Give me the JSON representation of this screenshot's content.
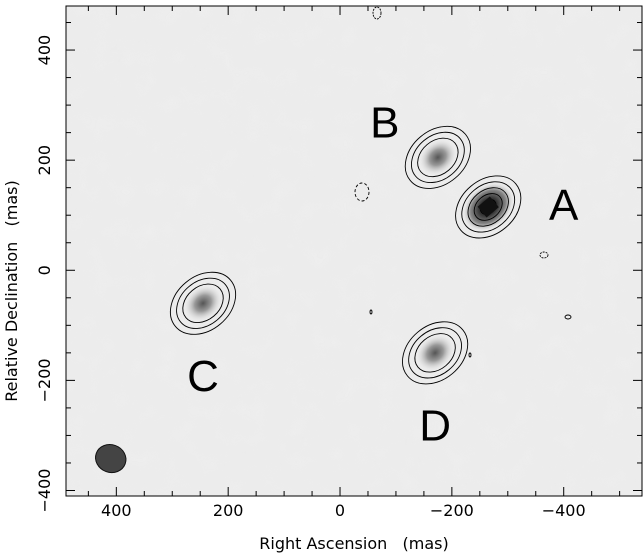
{
  "chart_data": {
    "type": "contour-image",
    "xlabel": "Right Ascension   (mas)",
    "ylabel": "Relative Declination   (mas)",
    "xlim": [
      490,
      -540
    ],
    "ylim": [
      -410,
      480
    ],
    "x_axis_inverted": true,
    "grid": false,
    "x_ticks": [
      400,
      200,
      0,
      -200,
      -400
    ],
    "y_ticks": [
      400,
      200,
      0,
      -200,
      -400
    ],
    "x_tick_labels": [
      "400",
      "200",
      "0",
      "−200",
      "−400"
    ],
    "y_tick_labels": [
      "400",
      "200",
      "0",
      "−200",
      "−400"
    ],
    "sources": [
      {
        "label": "A",
        "x": -265,
        "y": 115,
        "peak": 1.0,
        "contours": 5,
        "label_x": -400,
        "label_y": 120
      },
      {
        "label": "B",
        "x": -175,
        "y": 205,
        "peak": 0.55,
        "contours": 3,
        "label_x": -80,
        "label_y": 270
      },
      {
        "label": "C",
        "x": 245,
        "y": -60,
        "peak": 0.5,
        "contours": 3,
        "label_x": 245,
        "label_y": -190
      },
      {
        "label": "D",
        "x": -170,
        "y": -150,
        "peak": 0.55,
        "contours": 3,
        "label_x": -170,
        "label_y": -280
      }
    ],
    "beam": {
      "x": 410,
      "y": -342,
      "major_mas": 50,
      "minor_mas": 45
    }
  }
}
